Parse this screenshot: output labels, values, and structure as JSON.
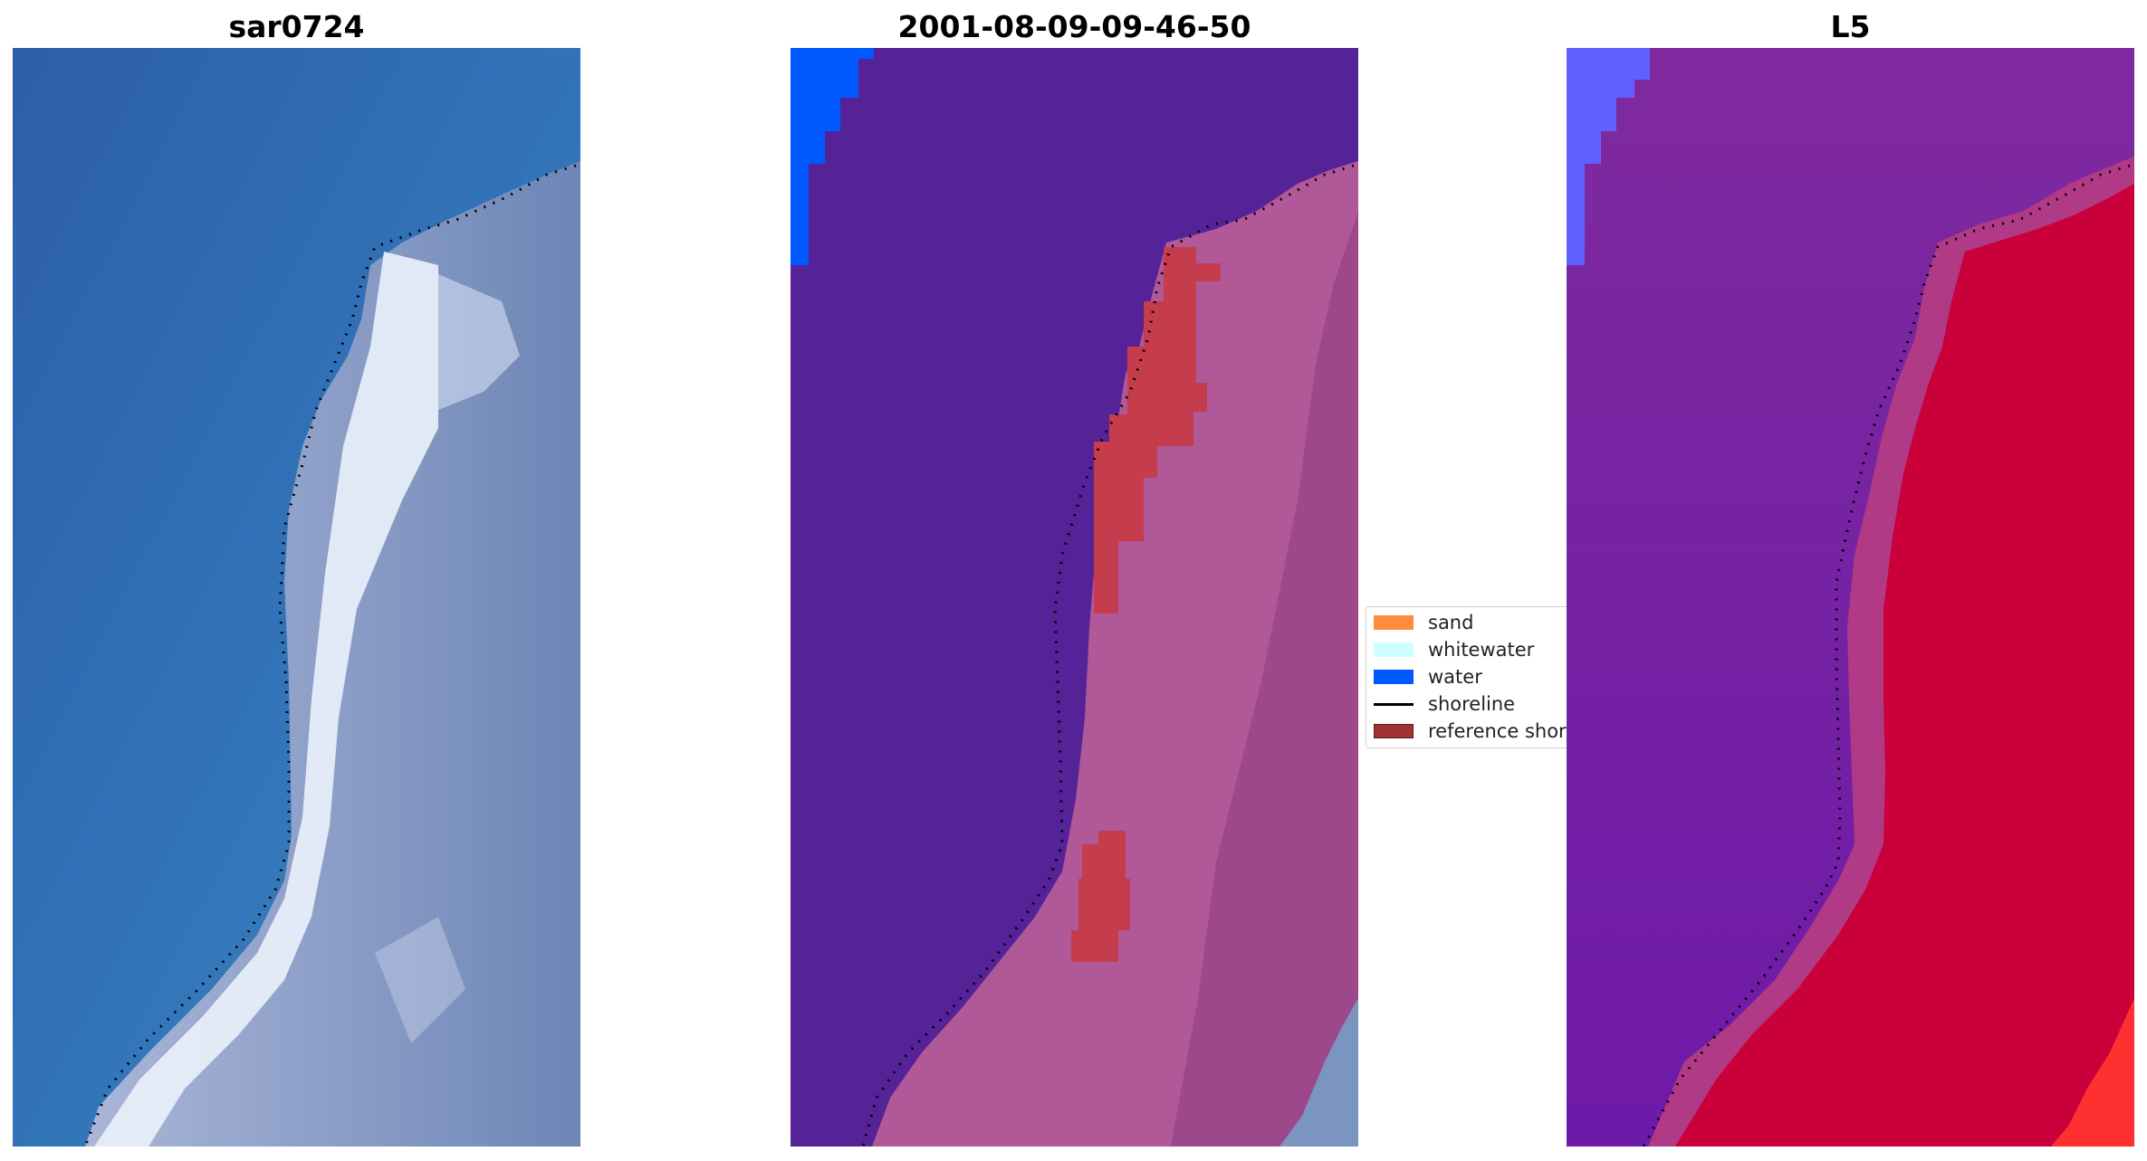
{
  "panels": [
    {
      "title": "sar0724"
    },
    {
      "title": "2001-08-09-09-46-50"
    },
    {
      "title": "L5"
    }
  ],
  "legend": {
    "items": [
      {
        "label": "sand",
        "kind": "patch",
        "color": "#ff8c3c"
      },
      {
        "label": "whitewater",
        "kind": "patch",
        "color": "#ccffff"
      },
      {
        "label": "water",
        "kind": "patch",
        "color": "#0059ff"
      },
      {
        "label": "shoreline",
        "kind": "line",
        "color": "#000000"
      },
      {
        "label": "reference shoreline",
        "kind": "patch",
        "color": "#a03232"
      }
    ]
  },
  "colors": {
    "water_rgb": "#2f6fb5",
    "surf_rgb": "#e8f0fa",
    "land_rgb": "#7f8fbf",
    "class_water": "#0059ff",
    "class_other": "#552297",
    "class_land": "#b05898",
    "class_refshore": "#c53c4c",
    "ndwi_low": "#7a1ea6",
    "ndwi_high": "#c9003a"
  }
}
